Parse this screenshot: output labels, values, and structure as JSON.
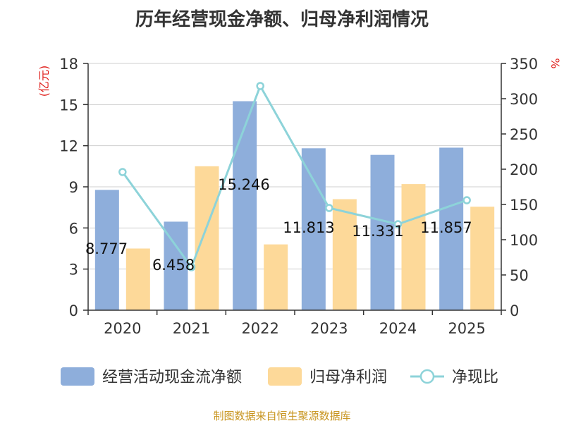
{
  "chart_data": {
    "type": "bar",
    "title": "历年经营现金净额、归母净利润情况",
    "categories": [
      "2020",
      "2021",
      "2022",
      "2023",
      "2024",
      "2025"
    ],
    "y_left": {
      "unit": "(亿元)",
      "ylim": [
        0,
        18
      ],
      "ticks": [
        0,
        3,
        6,
        9,
        12,
        15,
        18
      ]
    },
    "y_right": {
      "unit": "%",
      "ylim": [
        0,
        350
      ],
      "ticks": [
        0,
        50,
        100,
        150,
        200,
        250,
        300,
        350
      ]
    },
    "series": [
      {
        "name": "经营活动现金流净额",
        "type": "bar",
        "axis": "left",
        "color": "#8eaedb",
        "values": [
          8.777,
          6.458,
          15.246,
          11.813,
          11.331,
          11.857
        ],
        "labels": [
          "8.777",
          "6.458",
          "15.246",
          "11.813",
          "11.331",
          "11.857"
        ]
      },
      {
        "name": "归母净利润",
        "type": "bar",
        "axis": "left",
        "color": "#fdd999",
        "values": [
          4.5,
          10.5,
          4.8,
          8.1,
          9.2,
          7.55
        ]
      },
      {
        "name": "净现比",
        "type": "line",
        "axis": "right",
        "color": "#8dd3d9",
        "values": [
          196,
          61,
          318,
          145,
          122,
          156
        ]
      }
    ],
    "grid": true,
    "legend_position": "bottom",
    "source": "制图数据来自恒生聚源数据库"
  }
}
